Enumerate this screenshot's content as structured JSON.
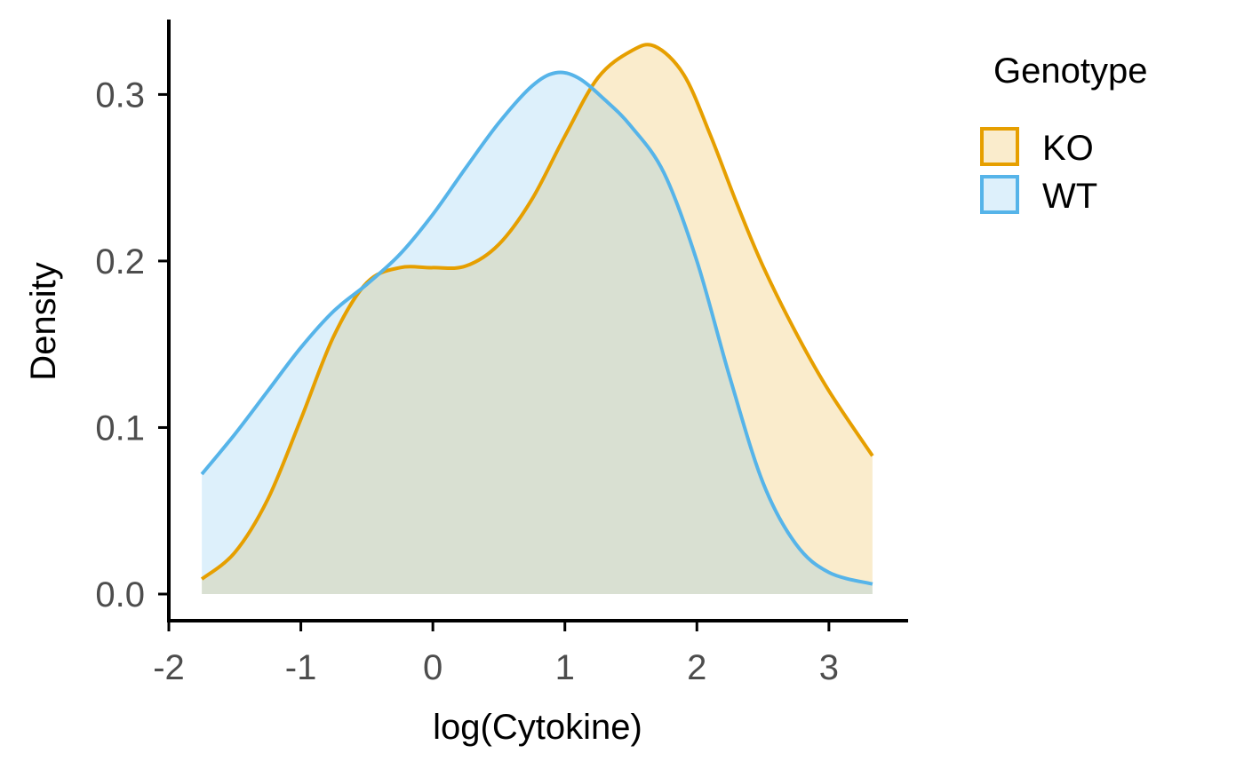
{
  "chart_data": {
    "type": "area",
    "xlabel": "log(Cytokine)",
    "ylabel": "Density",
    "xlim": [
      -2,
      3.6
    ],
    "ylim": [
      -0.016,
      0.345
    ],
    "x_ticks": [
      -2,
      -1,
      0,
      1,
      2,
      3
    ],
    "x_tick_labels": [
      "-2",
      "-1",
      "0",
      "1",
      "2",
      "3"
    ],
    "y_ticks": [
      0,
      0.1,
      0.2,
      0.3
    ],
    "y_tick_labels": [
      "0.0",
      "0.1",
      "0.2",
      "0.3"
    ],
    "grid": false,
    "legend": {
      "title": "Genotype",
      "position": "right"
    },
    "series": [
      {
        "name": "KO",
        "line_color": "#E69F00",
        "fill_color": "#E69F00",
        "fill_opacity": 0.2,
        "x": [
          -1.75,
          -1.5,
          -1.25,
          -1.0,
          -0.75,
          -0.5,
          -0.25,
          0.0,
          0.25,
          0.5,
          0.75,
          1.0,
          1.25,
          1.5,
          1.68,
          1.9,
          2.1,
          2.3,
          2.5,
          2.75,
          3.0,
          3.33
        ],
        "y": [
          0.009,
          0.025,
          0.057,
          0.105,
          0.155,
          0.187,
          0.196,
          0.196,
          0.197,
          0.21,
          0.237,
          0.275,
          0.31,
          0.326,
          0.329,
          0.312,
          0.276,
          0.235,
          0.197,
          0.157,
          0.122,
          0.083
        ]
      },
      {
        "name": "WT",
        "line_color": "#56B4E9",
        "fill_color": "#56B4E9",
        "fill_opacity": 0.2,
        "x": [
          -1.75,
          -1.5,
          -1.25,
          -1.0,
          -0.75,
          -0.5,
          -0.25,
          0.0,
          0.25,
          0.5,
          0.75,
          0.93,
          1.1,
          1.3,
          1.5,
          1.75,
          2.0,
          2.25,
          2.5,
          2.75,
          3.0,
          3.33
        ],
        "y": [
          0.072,
          0.096,
          0.122,
          0.148,
          0.17,
          0.186,
          0.204,
          0.228,
          0.256,
          0.283,
          0.305,
          0.313,
          0.31,
          0.297,
          0.281,
          0.253,
          0.2,
          0.13,
          0.067,
          0.03,
          0.013,
          0.006
        ]
      }
    ]
  }
}
